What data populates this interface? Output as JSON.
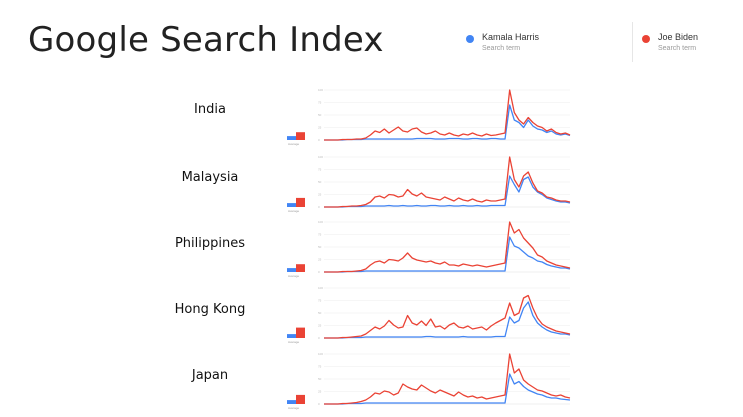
{
  "title": "Google Search Index",
  "legend": [
    {
      "term": "Kamala Harris",
      "sub": "Search term",
      "color": "#4285f4"
    },
    {
      "term": "Joe Biden",
      "sub": "Search term",
      "color": "#ea4335"
    }
  ],
  "colors": {
    "harris": "#4285f4",
    "biden": "#ea4335",
    "grid": "#eeeeee",
    "axis": "#e0e0e0"
  },
  "chart_data": [
    {
      "type": "line",
      "country": "India",
      "average_label": "Average",
      "average": {
        "harris": 3,
        "biden": 6
      },
      "ylim": [
        0,
        100
      ],
      "series": [
        {
          "name": "Kamala Harris",
          "values": [
            0,
            0,
            0,
            0,
            0,
            1,
            1,
            1,
            1,
            2,
            2,
            2,
            2,
            2,
            2,
            2,
            2,
            2,
            2,
            2,
            3,
            3,
            3,
            3,
            2,
            2,
            2,
            3,
            3,
            3,
            2,
            2,
            3,
            3,
            2,
            2,
            3,
            3,
            2,
            2,
            70,
            40,
            35,
            25,
            40,
            28,
            22,
            20,
            15,
            18,
            12,
            10,
            12,
            9
          ]
        },
        {
          "name": "Joe Biden",
          "values": [
            0,
            0,
            0,
            0,
            1,
            1,
            1,
            2,
            2,
            4,
            10,
            18,
            15,
            22,
            14,
            20,
            26,
            18,
            16,
            22,
            24,
            16,
            12,
            14,
            18,
            12,
            10,
            14,
            10,
            8,
            12,
            10,
            14,
            10,
            8,
            12,
            9,
            10,
            12,
            14,
            100,
            55,
            40,
            32,
            45,
            35,
            28,
            25,
            18,
            22,
            15,
            12,
            14,
            10
          ]
        }
      ]
    },
    {
      "type": "line",
      "country": "Malaysia",
      "average_label": "Average",
      "average": {
        "harris": 3,
        "biden": 7
      },
      "ylim": [
        0,
        100
      ],
      "series": [
        {
          "name": "Kamala Harris",
          "values": [
            0,
            0,
            0,
            0,
            0,
            1,
            1,
            1,
            1,
            2,
            2,
            2,
            2,
            2,
            3,
            2,
            2,
            3,
            2,
            2,
            3,
            2,
            2,
            3,
            3,
            2,
            2,
            3,
            2,
            2,
            3,
            2,
            2,
            3,
            2,
            2,
            3,
            3,
            3,
            3,
            62,
            45,
            30,
            55,
            60,
            40,
            30,
            25,
            18,
            15,
            12,
            10,
            10,
            8
          ]
        },
        {
          "name": "Joe Biden",
          "values": [
            0,
            0,
            0,
            0,
            1,
            1,
            2,
            2,
            3,
            5,
            10,
            20,
            22,
            18,
            25,
            24,
            20,
            22,
            35,
            26,
            22,
            28,
            20,
            18,
            16,
            14,
            20,
            16,
            12,
            18,
            14,
            12,
            16,
            12,
            10,
            14,
            12,
            12,
            14,
            16,
            100,
            55,
            40,
            62,
            70,
            48,
            32,
            28,
            20,
            18,
            14,
            12,
            12,
            10
          ]
        }
      ]
    },
    {
      "type": "line",
      "country": "Philippines",
      "average_label": "Average",
      "average": {
        "harris": 3,
        "biden": 6
      },
      "ylim": [
        0,
        100
      ],
      "series": [
        {
          "name": "Kamala Harris",
          "values": [
            0,
            0,
            0,
            0,
            0,
            1,
            1,
            1,
            1,
            2,
            2,
            2,
            2,
            2,
            2,
            2,
            2,
            2,
            2,
            2,
            2,
            2,
            2,
            2,
            2,
            2,
            2,
            2,
            2,
            2,
            2,
            2,
            2,
            2,
            2,
            2,
            2,
            2,
            2,
            2,
            70,
            52,
            48,
            40,
            32,
            28,
            22,
            20,
            15,
            12,
            10,
            8,
            8,
            6
          ]
        },
        {
          "name": "Joe Biden",
          "values": [
            0,
            0,
            0,
            0,
            1,
            1,
            1,
            2,
            3,
            6,
            14,
            20,
            22,
            18,
            25,
            24,
            22,
            28,
            38,
            28,
            24,
            22,
            20,
            22,
            18,
            16,
            20,
            14,
            14,
            12,
            16,
            14,
            12,
            14,
            12,
            10,
            12,
            14,
            16,
            18,
            100,
            78,
            85,
            68,
            58,
            48,
            34,
            30,
            22,
            18,
            14,
            12,
            10,
            8
          ]
        }
      ]
    },
    {
      "type": "line",
      "country": "Hong Kong",
      "average_label": "Average",
      "average": {
        "harris": 3,
        "biden": 8
      },
      "ylim": [
        0,
        100
      ],
      "series": [
        {
          "name": "Kamala Harris",
          "values": [
            0,
            0,
            0,
            0,
            0,
            1,
            1,
            1,
            1,
            2,
            2,
            2,
            2,
            2,
            2,
            2,
            2,
            2,
            2,
            2,
            2,
            2,
            3,
            3,
            2,
            2,
            2,
            2,
            2,
            2,
            3,
            2,
            2,
            2,
            2,
            2,
            2,
            3,
            3,
            3,
            42,
            30,
            35,
            60,
            72,
            45,
            30,
            22,
            16,
            12,
            10,
            8,
            8,
            6
          ]
        },
        {
          "name": "Joe Biden",
          "values": [
            0,
            0,
            0,
            0,
            1,
            1,
            2,
            3,
            4,
            8,
            15,
            22,
            18,
            24,
            35,
            26,
            20,
            22,
            45,
            30,
            26,
            34,
            25,
            38,
            22,
            24,
            18,
            26,
            30,
            22,
            20,
            24,
            18,
            20,
            22,
            16,
            24,
            30,
            35,
            40,
            70,
            45,
            50,
            80,
            85,
            60,
            40,
            28,
            22,
            18,
            14,
            12,
            10,
            8
          ]
        }
      ]
    },
    {
      "type": "line",
      "country": "Japan",
      "average_label": "Average",
      "average": {
        "harris": 3,
        "biden": 7
      },
      "ylim": [
        0,
        100
      ],
      "series": [
        {
          "name": "Kamala Harris",
          "values": [
            0,
            0,
            0,
            0,
            0,
            1,
            1,
            1,
            1,
            2,
            2,
            2,
            2,
            2,
            2,
            2,
            2,
            2,
            2,
            2,
            2,
            2,
            2,
            2,
            2,
            2,
            2,
            2,
            2,
            2,
            2,
            2,
            2,
            2,
            2,
            2,
            2,
            2,
            2,
            2,
            60,
            40,
            45,
            35,
            28,
            24,
            20,
            18,
            14,
            12,
            12,
            10,
            9,
            8
          ]
        },
        {
          "name": "Joe Biden",
          "values": [
            0,
            0,
            0,
            0,
            1,
            1,
            2,
            3,
            5,
            8,
            14,
            22,
            20,
            26,
            24,
            18,
            22,
            40,
            34,
            30,
            28,
            38,
            32,
            26,
            22,
            28,
            24,
            20,
            16,
            24,
            18,
            14,
            16,
            12,
            14,
            10,
            12,
            14,
            16,
            18,
            100,
            62,
            70,
            48,
            40,
            34,
            28,
            26,
            22,
            18,
            16,
            18,
            14,
            12
          ]
        }
      ]
    }
  ]
}
